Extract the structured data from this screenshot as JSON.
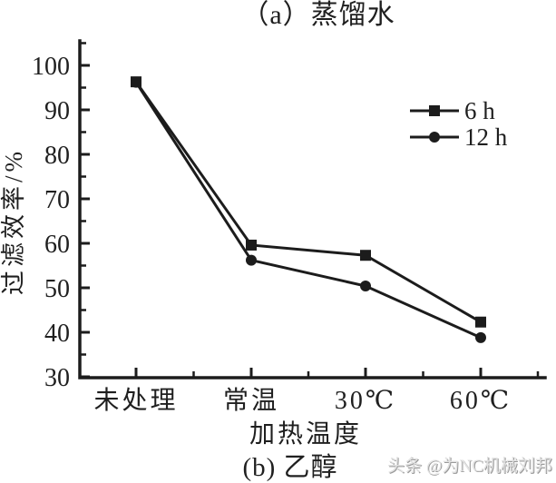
{
  "title_top": "（a）蒸馏水",
  "caption_bottom": "(b) 乙醇",
  "watermark_text": "头条 @为NC机械刘邦",
  "chart_data": {
    "type": "line",
    "categories": [
      "未处理",
      "常温",
      "30℃",
      "60℃"
    ],
    "series": [
      {
        "name": "6 h",
        "marker": "square",
        "values": [
          96.3,
          59.6,
          57.3,
          42.3
        ]
      },
      {
        "name": "12 h",
        "marker": "circle",
        "values": [
          96.2,
          56.2,
          50.4,
          38.8
        ]
      }
    ],
    "title": "（a）蒸馏水",
    "xlabel": "加热温度",
    "ylabel": "过滤效率/%",
    "ylim": [
      30,
      105
    ],
    "yticks": [
      30,
      40,
      50,
      60,
      70,
      80,
      90,
      100
    ],
    "legend": [
      "6 h",
      "12 h"
    ],
    "legend_position": "upper right",
    "grid": false,
    "line_color": "#1c1c1c",
    "background": "#ffffff"
  }
}
